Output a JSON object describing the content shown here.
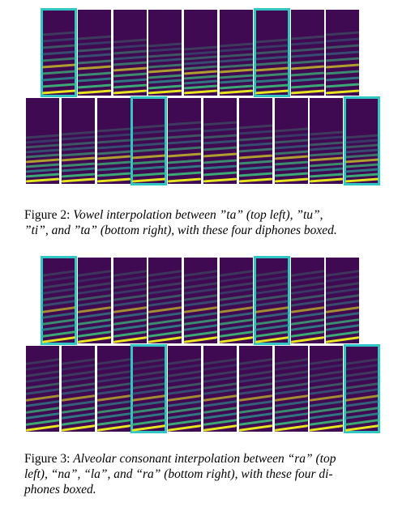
{
  "figures": [
    {
      "label": "Figure 2:",
      "caption_line1": "Vowel interpolation between ”ta” (top left), ”tu”,",
      "caption_line2": "”ti”, and ”ta” (bottom right), with these four diphones boxed.",
      "rows": [
        {
          "panels": 9,
          "boxed": [
            0,
            6
          ]
        },
        {
          "panels": 10,
          "boxed": [
            3,
            9
          ]
        }
      ],
      "boxed_diphones": [
        "ta",
        "tu",
        "ti",
        "ta"
      ]
    },
    {
      "label": "Figure 3:",
      "caption_line1": "Alveolar consonant interpolation between “ra” (top",
      "caption_line2": "left), “na”, “la”, and “ra” (bottom right), with these four di-",
      "caption_line3": "phones boxed.",
      "rows": [
        {
          "panels": 9,
          "boxed": [
            0,
            6
          ]
        },
        {
          "panels": 10,
          "boxed": [
            3,
            9
          ]
        }
      ],
      "boxed_diphones": [
        "ra",
        "na",
        "la",
        "ra"
      ]
    }
  ],
  "colors": {
    "spectrogram_background": "#3f0a52",
    "box_outline": "#31c6c4",
    "band_low": "#2f8a8c",
    "band_mid": "#3cb67a",
    "band_high": "#e6e520"
  }
}
